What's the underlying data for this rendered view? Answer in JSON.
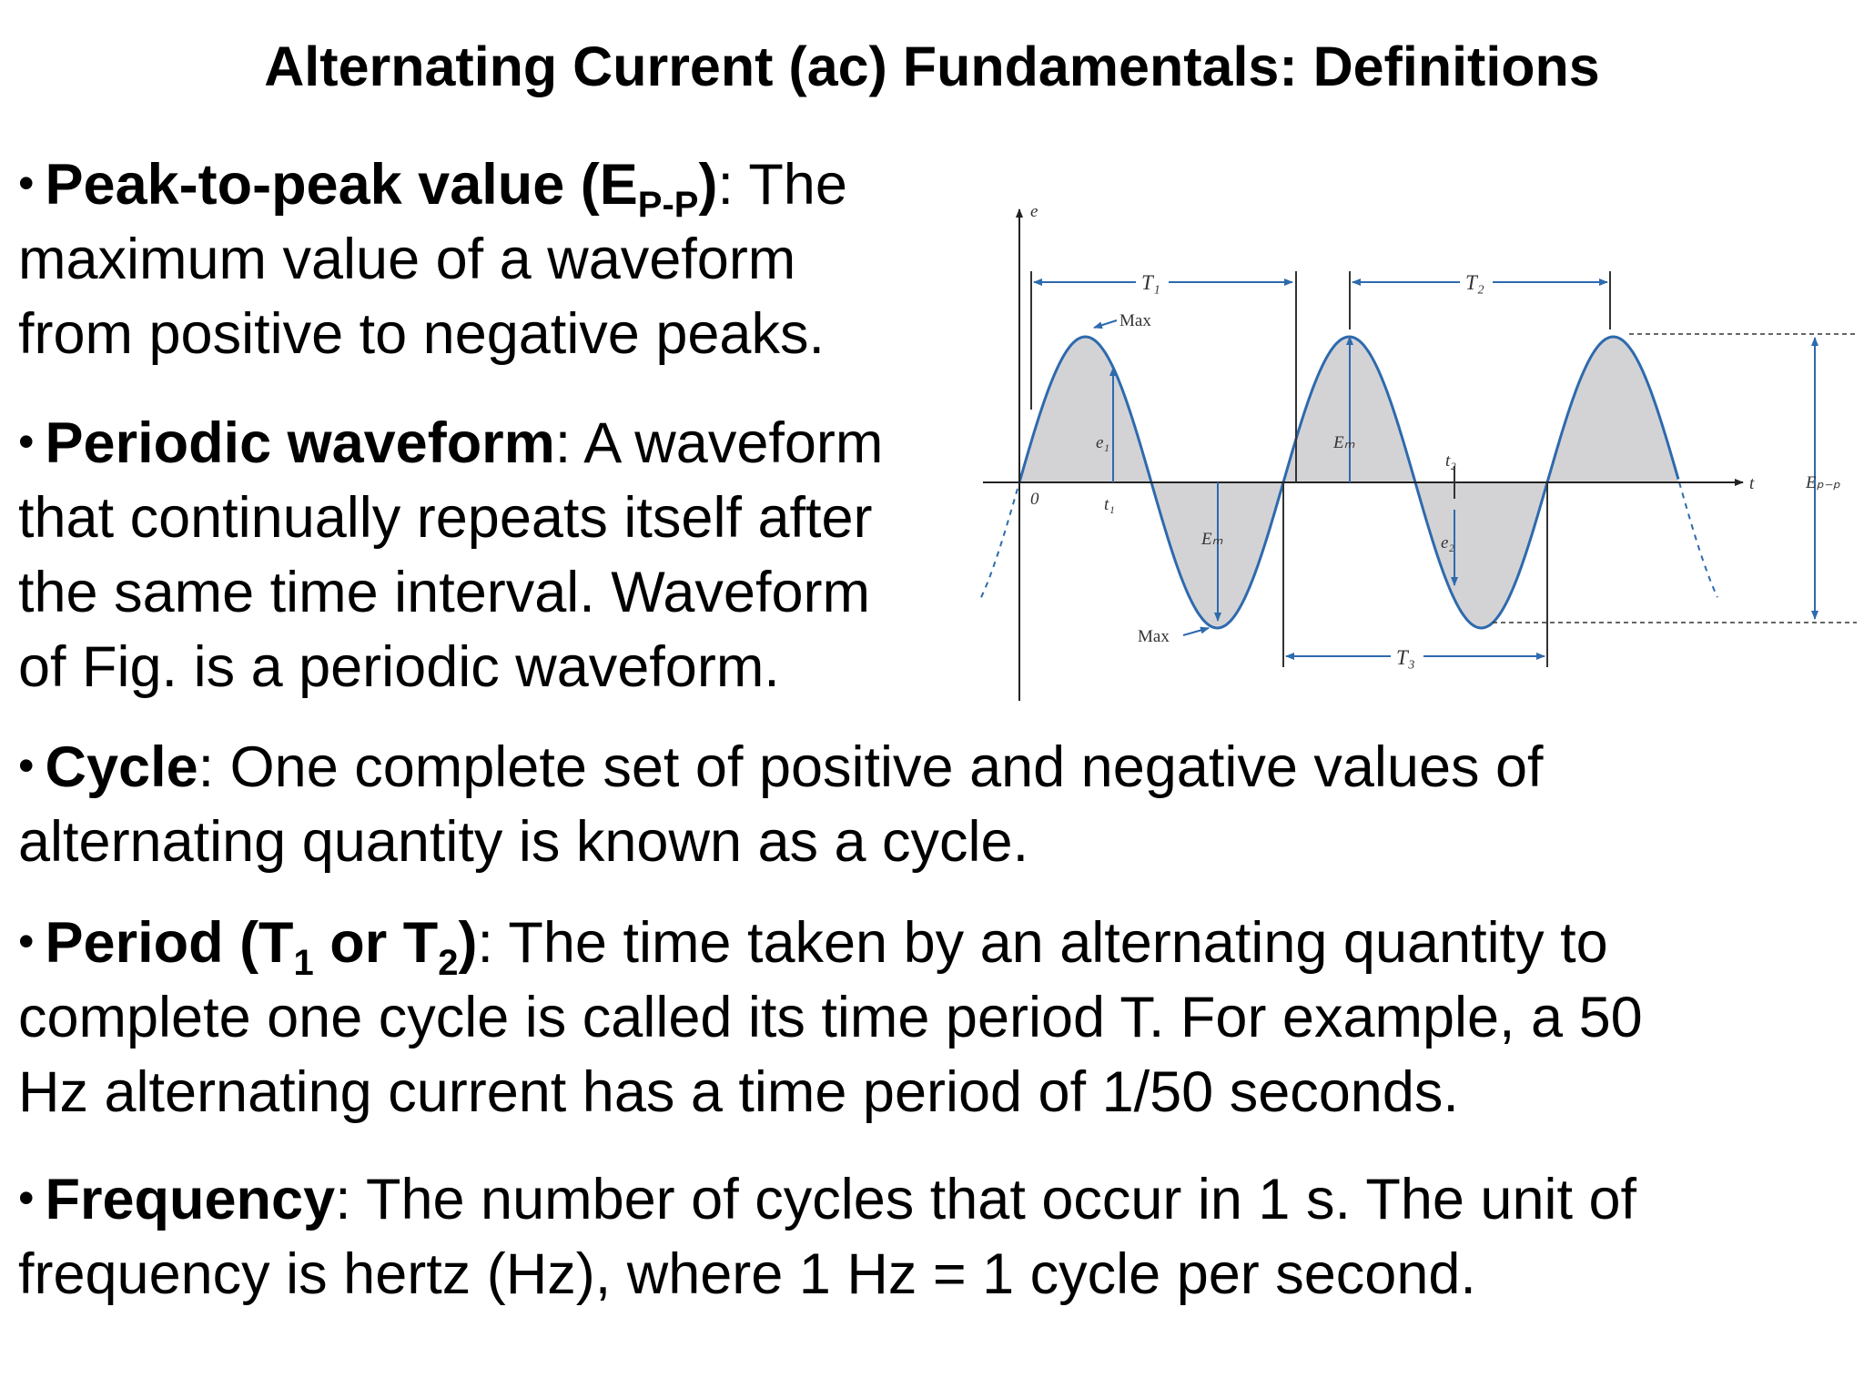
{
  "title": "Alternating Current (ac) Fundamentals: Definitions",
  "bullet_glyph": "•",
  "definitions": [
    {
      "term": "Peak-to-peak value (E",
      "term_sub": "P-P",
      "term_close": ")",
      "line1_rest": ": The",
      "lines": [
        "maximum value of a waveform",
        "from positive to negative peaks."
      ]
    },
    {
      "term": "Periodic waveform",
      "line1_rest": ": A waveform",
      "lines": [
        "that continually repeats itself after",
        "the same time interval. Waveform",
        "of Fig. is a periodic waveform."
      ]
    },
    {
      "term": "Cycle",
      "line1_rest": ": One complete set of positive and negative values of",
      "lines": [
        "alternating quantity is known as a cycle."
      ]
    },
    {
      "term_a": "Period (T",
      "term_sub_a": "1",
      "term_b": " or T",
      "term_sub_b": "2",
      "term_close": ")",
      "line1_rest": ": The time taken by an alternating quantity to",
      "lines": [
        "complete one cycle is called its time period T. For example, a 50",
        "Hz alternating current has a time period of 1/50 seconds."
      ]
    },
    {
      "term": "Frequency",
      "line1_rest": ": The number of cycles that occur in 1 s. The unit of",
      "lines": [
        "frequency is hertz (Hz), where 1 Hz = 1 cycle per second."
      ]
    }
  ],
  "figure": {
    "colors": {
      "wave": "#2e6aad",
      "fill": "#d3d3d6",
      "axis": "#222222",
      "guide": "#333333"
    },
    "labels": {
      "y_axis": "e",
      "x_axis": "t",
      "origin": "0",
      "T1": "T₁",
      "T2": "T₂",
      "T3": "T₃",
      "max_top": "Max",
      "max_bottom": "Max",
      "e1": "e₁",
      "e2": "e₂",
      "t1": "t₁",
      "t2": "t₂",
      "Em_top": "Eₘ",
      "Em_bottom": "Eₘ",
      "Epp": "Eₚ₋ₚ"
    }
  }
}
